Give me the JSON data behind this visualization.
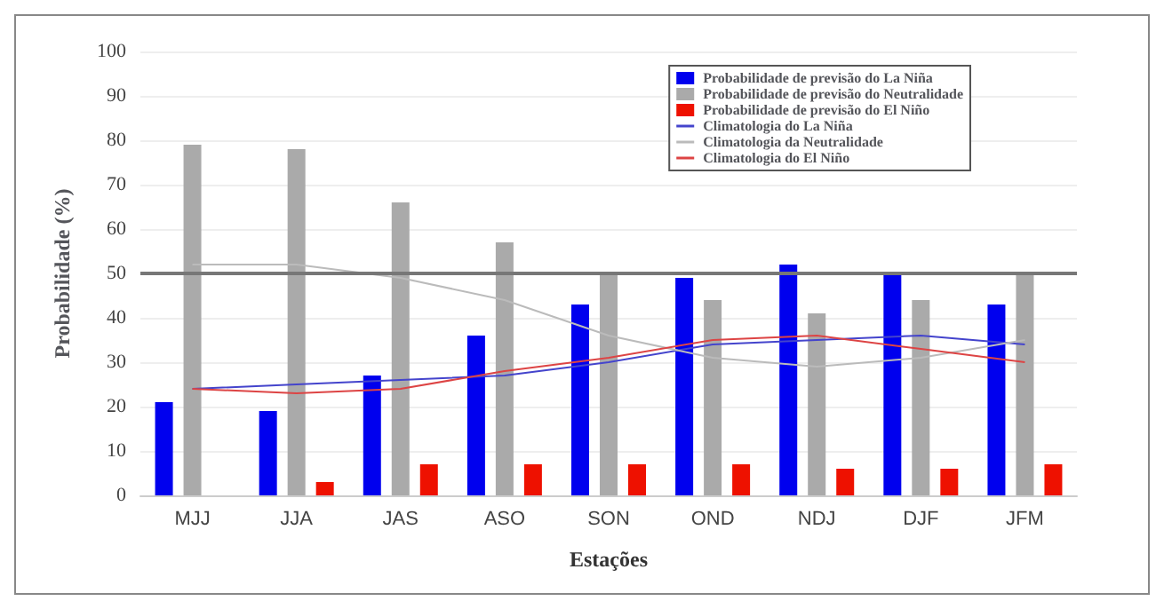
{
  "chart_data": {
    "type": "bar",
    "xlabel": "Estações",
    "ylabel": "Probabilidade (%)",
    "categories": [
      "MJJ",
      "JJA",
      "JAS",
      "ASO",
      "SON",
      "OND",
      "NDJ",
      "DJF",
      "JFM"
    ],
    "series": [
      {
        "name": "Probabilidade de previsão do La Niña",
        "color": "#0000ee",
        "values": [
          21,
          19,
          27,
          36,
          43,
          49,
          52,
          50,
          43
        ]
      },
      {
        "name": "Probabilidade de previsão do Neutralidade",
        "color": "#aaaaaa",
        "values": [
          79,
          78,
          66,
          57,
          50,
          44,
          41,
          44,
          50
        ]
      },
      {
        "name": "Probabilidade de previsão do El Niño",
        "color": "#ee1100",
        "values": [
          0,
          3,
          7,
          7,
          7,
          7,
          6,
          6,
          7
        ]
      },
      {
        "name": "Climatologia do La Niña",
        "type": "line",
        "color": "#4444cc",
        "values": [
          24,
          25,
          26,
          27,
          30,
          34,
          35,
          36,
          34
        ]
      },
      {
        "name": "Climatologia da Neutralidade",
        "type": "line",
        "color": "#bbbbbb",
        "values": [
          52,
          52,
          49,
          44,
          36,
          31,
          29,
          31,
          35
        ]
      },
      {
        "name": "Climatologia do El Niño",
        "type": "line",
        "color": "#dd4444",
        "values": [
          24,
          23,
          24,
          28,
          31,
          35,
          36,
          33,
          30
        ]
      }
    ],
    "ylim": [
      0,
      100
    ],
    "yticks": [
      0,
      10,
      20,
      30,
      40,
      50,
      60,
      70,
      80,
      90,
      100
    ],
    "grid": "y",
    "legend": "top right",
    "marker": "none",
    "line_style": "solid",
    "ref_lines": [
      {
        "axis": "y",
        "value": 50,
        "color": "#777777"
      }
    ]
  }
}
